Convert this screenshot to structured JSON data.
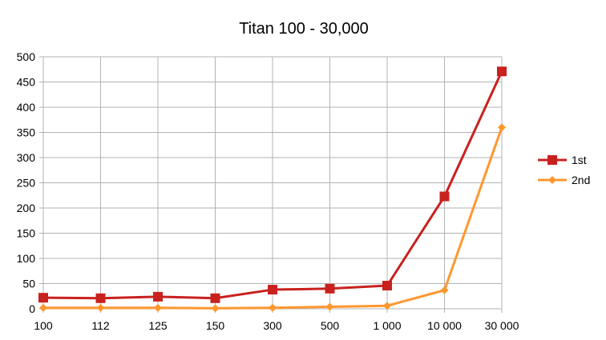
{
  "chart_data": {
    "type": "line",
    "title": "Titan 100 - 30,000",
    "xlabel": "",
    "ylabel": "",
    "categories": [
      "100",
      "112",
      "125",
      "150",
      "300",
      "500",
      "1 000",
      "10 000",
      "30 000"
    ],
    "ylim": [
      0,
      500
    ],
    "yticks": [
      "0",
      "50",
      "100",
      "150",
      "200",
      "250",
      "300",
      "350",
      "400",
      "450",
      "500"
    ],
    "grid": true,
    "legend": "right",
    "series": [
      {
        "name": "1st",
        "color": "#c9211e",
        "marker": "square",
        "values": [
          22,
          21,
          24,
          21,
          38,
          40,
          46,
          223,
          471
        ]
      },
      {
        "name": "2nd",
        "color": "#ff972f",
        "marker": "diamond",
        "values": [
          2,
          2,
          2,
          1,
          2,
          4,
          6,
          37,
          360
        ]
      }
    ]
  }
}
